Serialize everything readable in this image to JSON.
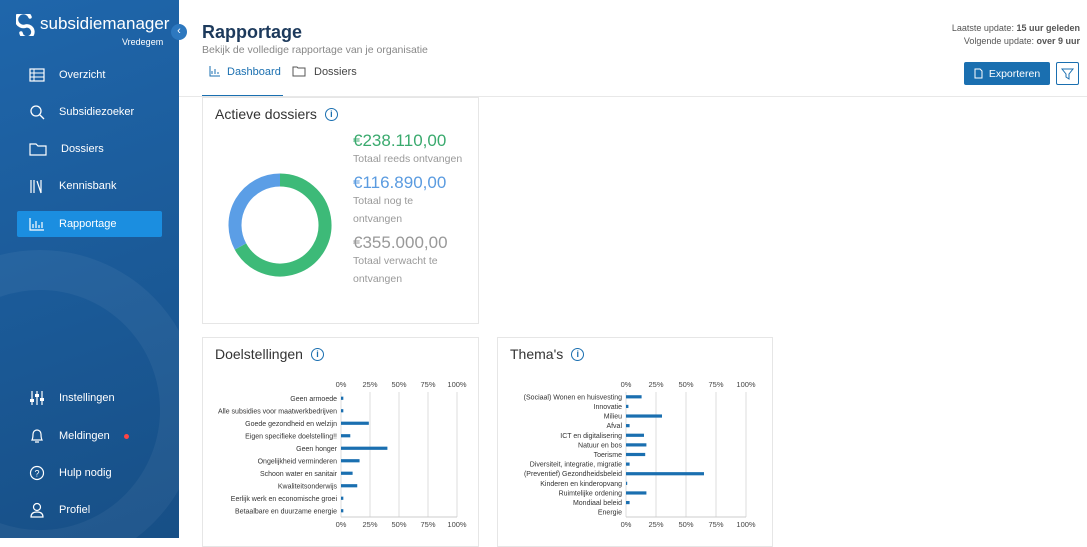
{
  "sidebar": {
    "brand": "subsidiemanager",
    "organization": "Vredegem",
    "nav": [
      "Overzicht",
      "Subsidiezoeker",
      "Dossiers",
      "Kennisbank",
      "Rapportage"
    ],
    "bottom_nav": [
      "Instellingen",
      "Meldingen",
      "Hulp nodig",
      "Profiel"
    ]
  },
  "header": {
    "title": "Rapportage",
    "subtitle": "Bekijk de volledige rapportage van je organisatie",
    "last_update_label": "Laatste update:",
    "last_update": "15 uur geleden",
    "next_update_label": "Volgende update:",
    "next_update": "over 9 uur",
    "tabs": [
      "Dashboard",
      "Dossiers"
    ],
    "export_button": "Exporteren"
  },
  "chart_data": [
    {
      "type": "donut",
      "title": "Actieve dossiers",
      "categories": [
        "Totaal reeds ontvangen",
        "Totaal nog te ontvangen"
      ],
      "values": [
        238110,
        116890
      ],
      "value_labels": [
        "€238.110,00",
        "€116.890,00"
      ],
      "colors": [
        "#3dba78",
        "#5b9ee6"
      ],
      "total": 355000,
      "total_label": "€355.000,00",
      "total_name": "Totaal verwacht te ontvangen"
    },
    {
      "type": "hbar",
      "title": "Doelstellingen",
      "categories": [
        "Geen armoede",
        "Alle subsidies voor maatwerkbedrijven",
        "Goede gezondheid en welzijn",
        "Eigen specifieke doelstelling!!",
        "Geen honger",
        "Ongelijkheid verminderen",
        "Schoon water en sanitair",
        "Kwaliteitsonderwijs",
        "Eerlijk werk en economische groei",
        "Betaalbare en duurzame energie"
      ],
      "values": [
        2,
        2,
        24,
        8,
        40,
        16,
        10,
        14,
        2,
        2
      ],
      "color": "#1a6fb0",
      "xlim": [
        0,
        100
      ],
      "xticks": [
        {
          "value": 0,
          "label": "0%"
        },
        {
          "value": 25,
          "label": "25%"
        },
        {
          "value": 50,
          "label": "50%"
        },
        {
          "value": 75,
          "label": "75%"
        },
        {
          "value": 100,
          "label": "100%"
        }
      ],
      "grid": true
    },
    {
      "type": "hbar",
      "title": "Thema's",
      "categories": [
        "(Sociaal) Wonen en huisvesting",
        "Innovatie",
        "Milieu",
        "Afval",
        "ICT en digitalisering",
        "Natuur en bos",
        "Toerisme",
        "Diversiteit, integratie, migratie",
        "(Preventief) Gezondheidsbeleid",
        "Kinderen en kinderopvang",
        "Ruimtelijke ordening",
        "Mondiaal beleid",
        "Energie"
      ],
      "values": [
        13,
        2,
        30,
        3,
        15,
        17,
        16,
        3,
        65,
        1,
        17,
        3,
        0
      ],
      "color": "#1a6fb0",
      "xlim": [
        0,
        100
      ],
      "xticks": [
        {
          "value": 0,
          "label": "0%"
        },
        {
          "value": 25,
          "label": "25%"
        },
        {
          "value": 50,
          "label": "50%"
        },
        {
          "value": 75,
          "label": "75%"
        },
        {
          "value": 100,
          "label": "100%"
        }
      ],
      "grid": true
    }
  ]
}
